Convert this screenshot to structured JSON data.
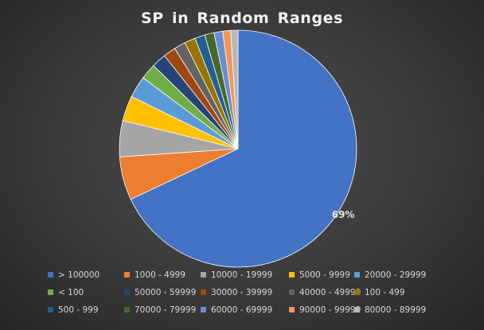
{
  "chart_data": {
    "type": "pie",
    "title": "SP in Random Ranges",
    "categories": [
      "> 100000",
      "1000 - 4999",
      "10000 - 19999",
      "5000 - 9999",
      "20000 - 29999",
      "< 100",
      "50000 - 59999",
      "30000 - 39999",
      "40000 - 49999",
      "100 - 499",
      "500 - 999",
      "70000 - 79999",
      "60000 - 69999",
      "90000 - 99999",
      "80000 - 89999"
    ],
    "values": [
      69,
      6,
      5,
      3.5,
      3,
      2.2,
      2,
      1.7,
      1.6,
      1.5,
      1.4,
      1.3,
      1.2,
      1.1,
      1.0
    ],
    "colors": [
      "#4472c4",
      "#ed7d31",
      "#a5a5a5",
      "#ffc000",
      "#5b9bd5",
      "#70ad47",
      "#264478",
      "#9e480e",
      "#636363",
      "#997300",
      "#255e91",
      "#43682b",
      "#698ed0",
      "#f1975a",
      "#b7b7b7"
    ],
    "data_labels": [
      {
        "category": "> 100000",
        "text": "69%"
      }
    ],
    "legend_position": "bottom"
  }
}
